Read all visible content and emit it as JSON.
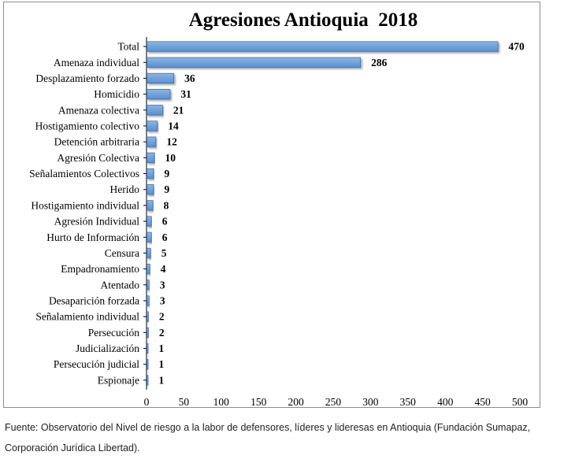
{
  "chart_data": {
    "type": "bar",
    "orientation": "horizontal",
    "title": "Agresiones Antioquia  2018",
    "categories": [
      "Total",
      "Amenaza individual",
      "Desplazamiento forzado",
      "Homicidio",
      "Amenaza colectiva",
      "Hostigamiento colectivo",
      "Detención arbitraria",
      "Agresión Colectiva",
      "Señalamientos Colectivos",
      "Herido",
      "Hostigamiento individual",
      "Agresión Individual",
      "Hurto de Información",
      "Censura",
      "Empadronamiento",
      "Atentado",
      "Desaparición forzada",
      "Señalamiento individual",
      "Persecución",
      "Judicialización",
      "Persecución judicial",
      "Espionaje"
    ],
    "values": [
      470,
      286,
      36,
      31,
      21,
      14,
      12,
      10,
      9,
      9,
      8,
      6,
      6,
      5,
      4,
      3,
      3,
      2,
      2,
      1,
      1,
      1
    ],
    "xlim": [
      0,
      500
    ],
    "xticks": [
      "0",
      "50",
      "100",
      "150",
      "200",
      "250",
      "300",
      "350",
      "400",
      "450",
      "500"
    ],
    "xlabel": "",
    "ylabel": "",
    "grid": false,
    "legend": "none",
    "bar_color": "#6a9fd8",
    "bar_edge_color": "#3f6fa8"
  },
  "source_note": "Fuente: Observatorio del Nivel de riesgo a la labor de defensores, líderes y lideresas en Antioquia (Fundación Sumapaz, Corporación Jurídica Libertad)."
}
